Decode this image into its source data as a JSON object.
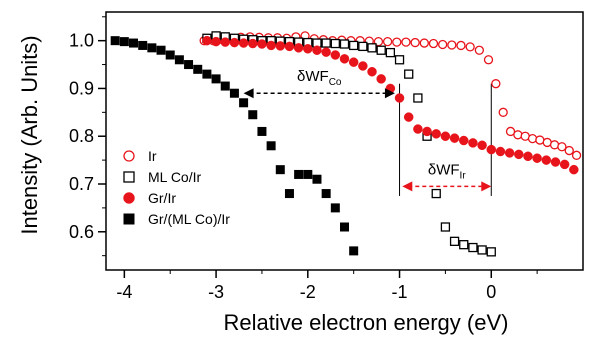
{
  "chart_data": {
    "type": "scatter",
    "title": "",
    "xlabel": "Relative electron energy (eV)",
    "ylabel": "Intensity (Arb. Units)",
    "xlim": [
      -4.2,
      1.0
    ],
    "ylim": [
      0.52,
      1.06
    ],
    "xticks": [
      -4,
      -3,
      -2,
      -1,
      0
    ],
    "xtick_labels": [
      "-4",
      "-3",
      "-2",
      "-1",
      "0"
    ],
    "yticks": [
      0.6,
      0.7,
      0.8,
      0.9,
      1.0
    ],
    "ytick_labels": [
      "0.6",
      "0.7",
      "0.8",
      "0.9",
      "1.0"
    ],
    "grid": false,
    "legend_position": "lower-left",
    "series": [
      {
        "name": "Ir",
        "marker": "open-circle",
        "color": "#e8141b",
        "x": [
          -3.13,
          -3.03,
          -2.93,
          -2.83,
          -2.73,
          -2.63,
          -2.53,
          -2.43,
          -2.33,
          -2.23,
          -2.13,
          -2.03,
          -1.93,
          -1.83,
          -1.73,
          -1.63,
          -1.53,
          -1.43,
          -1.33,
          -1.23,
          -1.13,
          -1.03,
          -0.93,
          -0.83,
          -0.73,
          -0.63,
          -0.53,
          -0.43,
          -0.33,
          -0.23,
          -0.13,
          -0.03,
          0.05,
          0.13,
          0.21,
          0.29,
          0.37,
          0.45,
          0.53,
          0.61,
          0.69,
          0.77,
          0.85,
          0.93
        ],
        "y": [
          1.0,
          1.0,
          1.002,
          1.005,
          1.007,
          1.008,
          1.007,
          1.006,
          1.006,
          1.005,
          1.008,
          1.01,
          1.004,
          1.002,
          1.0,
          1.001,
          1.0,
          1.0,
          0.999,
          0.998,
          0.998,
          0.997,
          0.997,
          0.996,
          0.995,
          0.994,
          0.992,
          0.991,
          0.99,
          0.987,
          0.98,
          0.96,
          0.91,
          0.85,
          0.81,
          0.803,
          0.8,
          0.795,
          0.792,
          0.787,
          0.782,
          0.778,
          0.77,
          0.76
        ]
      },
      {
        "name": "ML Co/Ir",
        "marker": "open-square",
        "color": "#000000",
        "x": [
          -3.1,
          -3.0,
          -2.9,
          -2.8,
          -2.7,
          -2.6,
          -2.5,
          -2.4,
          -2.3,
          -2.2,
          -2.1,
          -2.0,
          -1.9,
          -1.8,
          -1.7,
          -1.6,
          -1.5,
          -1.4,
          -1.3,
          -1.2,
          -1.1,
          -1.0,
          -0.9,
          -0.8,
          -0.7,
          -0.6,
          -0.5,
          -0.4,
          -0.3,
          -0.2,
          -0.1,
          0.0
        ],
        "y": [
          1.005,
          1.01,
          1.008,
          1.005,
          1.003,
          1.002,
          1.0,
          1.0,
          0.999,
          0.998,
          0.997,
          0.996,
          0.995,
          0.995,
          0.994,
          0.993,
          0.99,
          0.988,
          0.985,
          0.98,
          0.975,
          0.96,
          0.93,
          0.88,
          0.8,
          0.68,
          0.61,
          0.58,
          0.573,
          0.567,
          0.562,
          0.558
        ]
      },
      {
        "name": "Gr/Ir",
        "marker": "filled-circle",
        "color": "#e8141b",
        "x": [
          -3.1,
          -3.0,
          -2.9,
          -2.8,
          -2.7,
          -2.6,
          -2.5,
          -2.4,
          -2.3,
          -2.2,
          -2.1,
          -2.0,
          -1.9,
          -1.8,
          -1.7,
          -1.6,
          -1.5,
          -1.4,
          -1.3,
          -1.2,
          -1.1,
          -1.0,
          -0.9,
          -0.8,
          -0.7,
          -0.6,
          -0.5,
          -0.4,
          -0.3,
          -0.2,
          -0.1,
          0.0,
          0.1,
          0.2,
          0.3,
          0.4,
          0.5,
          0.6,
          0.7,
          0.8,
          0.9
        ],
        "y": [
          1.0,
          0.998,
          0.997,
          0.996,
          0.995,
          0.994,
          0.993,
          0.99,
          0.989,
          0.988,
          0.985,
          0.983,
          0.98,
          0.976,
          0.97,
          0.962,
          0.955,
          0.947,
          0.935,
          0.92,
          0.9,
          0.88,
          0.84,
          0.815,
          0.81,
          0.805,
          0.8,
          0.796,
          0.791,
          0.786,
          0.781,
          0.772,
          0.768,
          0.765,
          0.762,
          0.758,
          0.754,
          0.75,
          0.746,
          0.741,
          0.73
        ]
      },
      {
        "name": "Gr/(ML Co)/Ir",
        "marker": "filled-square",
        "color": "#000000",
        "x": [
          -4.1,
          -4.0,
          -3.9,
          -3.8,
          -3.7,
          -3.6,
          -3.5,
          -3.4,
          -3.3,
          -3.2,
          -3.1,
          -3.0,
          -2.9,
          -2.8,
          -2.7,
          -2.6,
          -2.5,
          -2.4,
          -2.3,
          -2.2,
          -2.1,
          -2.0,
          -1.9,
          -1.8,
          -1.7,
          -1.6,
          -1.5
        ],
        "y": [
          1.0,
          0.998,
          0.995,
          0.99,
          0.985,
          0.98,
          0.97,
          0.96,
          0.95,
          0.94,
          0.93,
          0.92,
          0.905,
          0.89,
          0.87,
          0.845,
          0.81,
          0.78,
          0.73,
          0.68,
          0.72,
          0.72,
          0.71,
          0.68,
          0.65,
          0.61,
          0.56
        ]
      }
    ],
    "annotations": [
      {
        "label_main": "δWF",
        "label_sub": "Co",
        "from": [
          -2.7,
          0.89
        ],
        "to": [
          -1.05,
          0.89
        ],
        "color": "#000000",
        "style": "dashed"
      },
      {
        "label_main": "δWF",
        "label_sub": "Ir",
        "from": [
          -0.97,
          0.695
        ],
        "to": [
          0.0,
          0.695
        ],
        "color": "#e8141b",
        "style": "dashed"
      }
    ],
    "vertical_guides": [
      -1.0,
      0.0
    ]
  }
}
